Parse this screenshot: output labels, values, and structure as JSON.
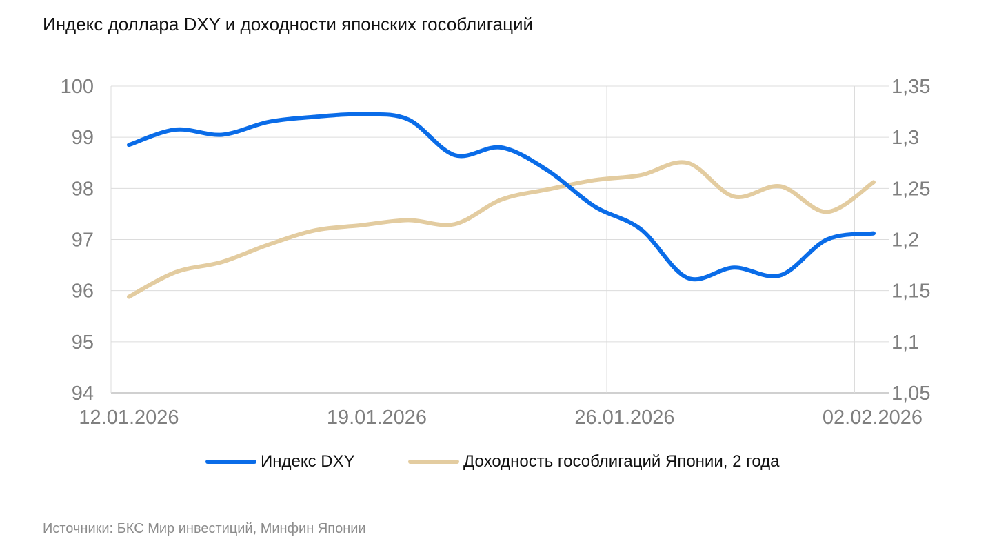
{
  "title": "Индекс доллара DXY и доходности японских гособлигаций",
  "source": "Источники: БКС Мир инвестиций, Минфин Японии",
  "legend": [
    {
      "label": "Индекс DXY",
      "color": "#0A6CE8"
    },
    {
      "label": "Доходность гособлигаций Японии, 2 года",
      "color": "#E3CCA0"
    }
  ],
  "chart_data": {
    "type": "line",
    "title": "Индекс доллара DXY и доходности японских гособлигаций",
    "xlabel": "",
    "ylabel_left": "",
    "ylabel_right": "",
    "x_tick_labels": [
      "12.01.2026",
      "19.01.2026",
      "26.01.2026",
      "02.02.2026"
    ],
    "y_left_ticks": [
      "94",
      "95",
      "96",
      "97",
      "98",
      "99",
      "100"
    ],
    "y_right_ticks": [
      "1,05",
      "1,1",
      "1,15",
      "1,2",
      "1,25",
      "1,3",
      "1,35"
    ],
    "ylim_left": [
      94,
      100
    ],
    "ylim_right": [
      1.05,
      1.35
    ],
    "grid": true,
    "legend_position": "bottom",
    "x": [
      "13.01.2026",
      "14.01.2026",
      "15.01.2026",
      "16.01.2026",
      "17.01.2026",
      "19.01.2026",
      "20.01.2026",
      "21.01.2026",
      "22.01.2026",
      "23.01.2026",
      "24.01.2026",
      "26.01.2026",
      "27.01.2026",
      "28.01.2026",
      "29.01.2026",
      "30.01.2026",
      "02.02.2026"
    ],
    "series": [
      {
        "name": "Индекс DXY",
        "axis": "left",
        "color": "#0A6CE8",
        "values": [
          98.85,
          99.15,
          99.05,
          99.3,
          99.4,
          99.45,
          99.35,
          98.65,
          98.8,
          98.35,
          97.65,
          97.2,
          96.25,
          96.45,
          96.3,
          97.0,
          97.12
        ]
      },
      {
        "name": "Доходность гособлигаций Японии, 2 года",
        "axis": "right",
        "color": "#E3CCA0",
        "values": [
          1.144,
          1.168,
          1.178,
          1.195,
          1.209,
          1.214,
          1.219,
          1.215,
          1.239,
          1.249,
          1.258,
          1.263,
          1.275,
          1.242,
          1.252,
          1.227,
          1.256
        ]
      }
    ]
  }
}
